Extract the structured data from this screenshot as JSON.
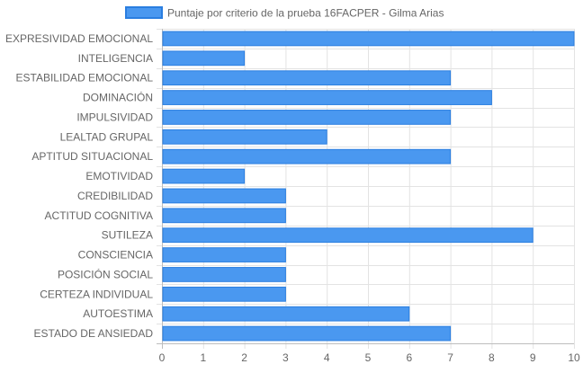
{
  "chart_data": {
    "type": "bar",
    "orientation": "horizontal",
    "categories": [
      "EXPRESIVIDAD EMOCIONAL",
      "INTELIGENCIA",
      "ESTABILIDAD EMOCIONAL",
      "DOMINACIÓN",
      "IMPULSIVIDAD",
      "LEALTAD GRUPAL",
      "APTITUD SITUACIONAL",
      "EMOTIVIDAD",
      "CREDIBILIDAD",
      "ACTITUD COGNITIVA",
      "SUTILEZA",
      "CONSCIENCIA",
      "POSICIÓN SOCIAL",
      "CERTEZA INDIVIDUAL",
      "AUTOESTIMA",
      "ESTADO DE ANSIEDAD"
    ],
    "series": [
      {
        "name": "Puntaje por criterio de la prueba 16FACPER - Gilma Arias",
        "values": [
          10,
          2,
          7,
          8,
          7,
          4,
          7,
          2,
          3,
          3,
          9,
          3,
          3,
          3,
          6,
          7
        ],
        "color": "#4a98f0",
        "border_color": "#2a7ee0"
      }
    ],
    "xlim": [
      0,
      10
    ],
    "x_ticks": [
      "0",
      "1",
      "2",
      "3",
      "4",
      "5",
      "6",
      "7",
      "8",
      "9",
      "10"
    ],
    "grid": true,
    "legend_position": "top"
  }
}
